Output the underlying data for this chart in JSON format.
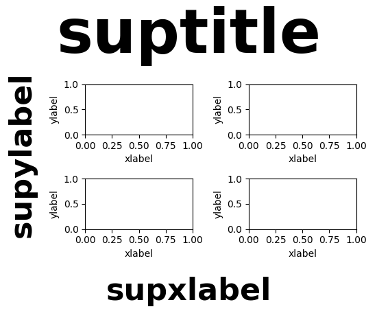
{
  "suptitle": "suptitle",
  "supxlabel": "supxlabel",
  "supylabel": "supylabel",
  "subplot_xlabel": "xlabel",
  "subplot_ylabel": "ylabel",
  "suptitle_fontsize": 64,
  "suptitle_fontweight": "bold",
  "supxlabel_fontsize": 32,
  "supxlabel_fontweight": "bold",
  "supylabel_fontsize": 32,
  "supylabel_fontweight": "bold",
  "nrows": 2,
  "ncols": 2,
  "figsize": [
    5.5,
    4.5
  ],
  "dpi": 100,
  "xticks": [
    0.0,
    0.25,
    0.5,
    0.75,
    1.0
  ],
  "yticks": [
    0.0,
    0.5,
    1.0
  ],
  "xlim": [
    0.0,
    1.0
  ],
  "ylim": [
    0.0,
    1.0
  ]
}
